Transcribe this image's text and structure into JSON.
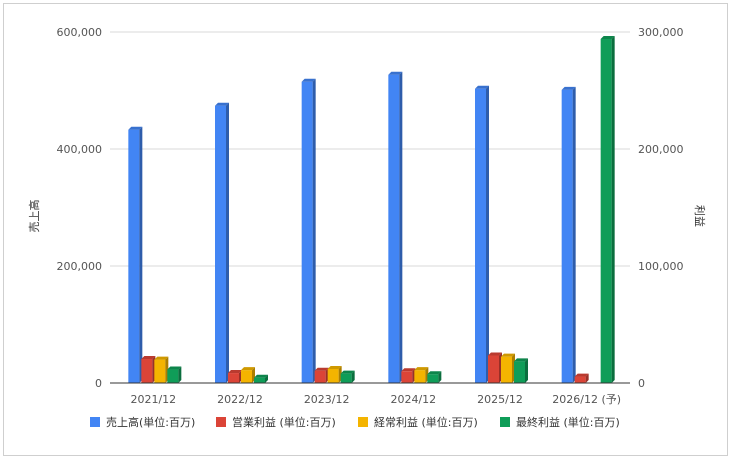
{
  "chart_data": {
    "type": "bar",
    "categories": [
      "2021/12",
      "2022/12",
      "2023/12",
      "2024/12",
      "2025/12",
      "2026/12 (予)"
    ],
    "y_left": {
      "label": "売上高",
      "range": [
        0,
        600000
      ],
      "ticks": [
        0,
        200000,
        400000,
        600000
      ],
      "tick_labels": [
        "0",
        "200,000",
        "400,000",
        "600,000"
      ]
    },
    "y_right": {
      "label": "利益",
      "range": [
        0,
        300000
      ],
      "ticks": [
        0,
        100000,
        200000,
        300000
      ],
      "tick_labels": [
        "0",
        "100,000",
        "200,000",
        "300,000"
      ]
    },
    "series": [
      {
        "name": "売上高(単位:百万)",
        "axis": "left",
        "color": "#4285F4",
        "values": [
          433000,
          474000,
          515000,
          527000,
          503000,
          501000
        ]
      },
      {
        "name": "営業利益 (単位:百万)",
        "axis": "right",
        "color": "#DB4437",
        "values": [
          20500,
          8500,
          10500,
          10000,
          23500,
          5500
        ]
      },
      {
        "name": "経常利益 (単位:百万)",
        "axis": "right",
        "color": "#F4B400",
        "values": [
          20000,
          11000,
          12000,
          11000,
          22500,
          null
        ]
      },
      {
        "name": "最終利益 (単位:百万)",
        "axis": "right",
        "color": "#0F9D58",
        "values": [
          11500,
          4500,
          8000,
          7500,
          18500,
          294000
        ]
      }
    ],
    "grid": true,
    "legend_position": "bottom"
  }
}
